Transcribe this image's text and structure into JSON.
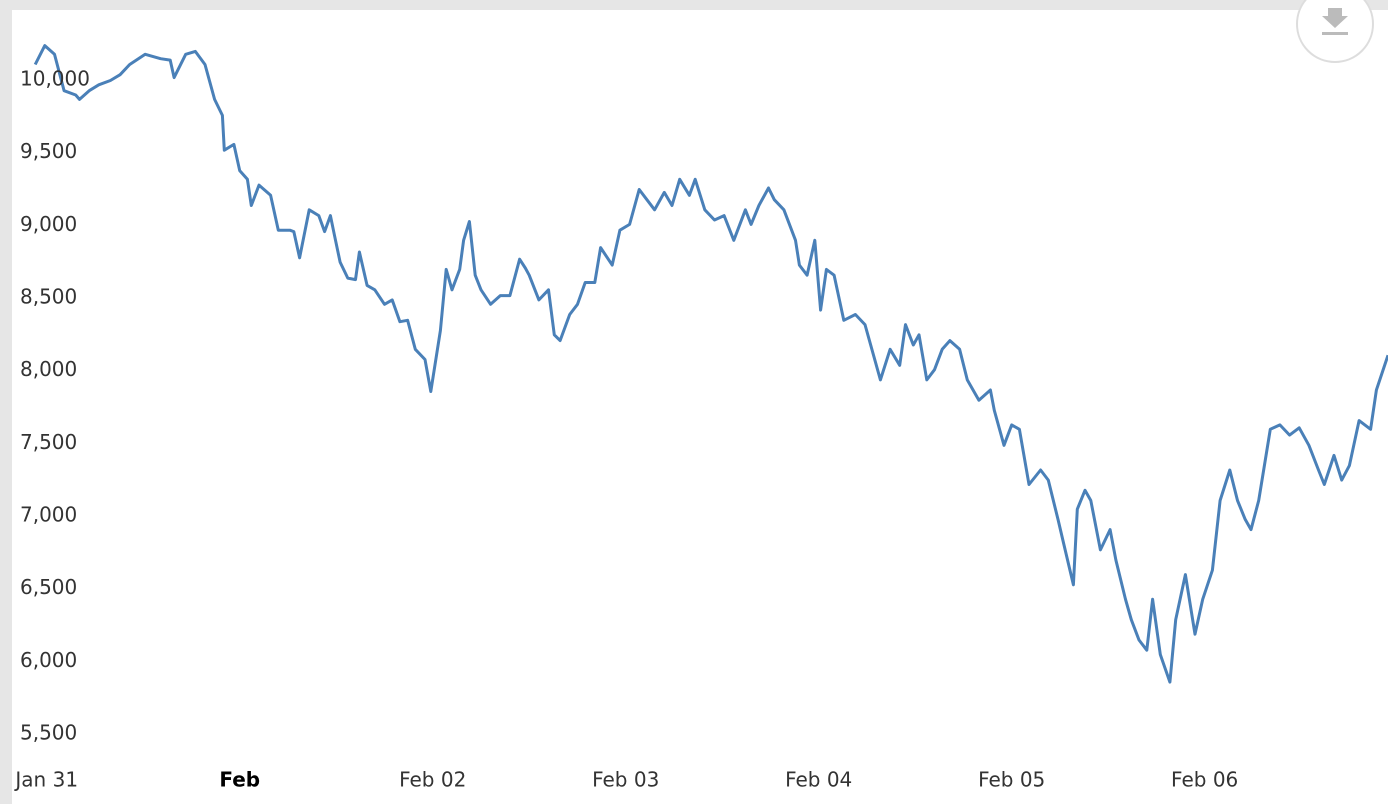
{
  "chart_data": {
    "type": "line",
    "x": [
      -0.06,
      -0.01,
      0.04,
      0.09,
      0.15,
      0.17,
      0.22,
      0.27,
      0.33,
      0.38,
      0.43,
      0.51,
      0.59,
      0.64,
      0.66,
      0.72,
      0.77,
      0.82,
      0.87,
      0.91,
      0.92,
      0.97,
      1.0,
      1.04,
      1.06,
      1.1,
      1.16,
      1.2,
      1.26,
      1.28,
      1.31,
      1.36,
      1.41,
      1.44,
      1.47,
      1.49,
      1.52,
      1.56,
      1.6,
      1.62,
      1.66,
      1.7,
      1.75,
      1.79,
      1.83,
      1.87,
      1.91,
      1.96,
      1.99,
      2.04,
      2.07,
      2.1,
      2.14,
      2.16,
      2.19,
      2.22,
      2.25,
      2.3,
      2.35,
      2.4,
      2.45,
      2.48,
      2.5,
      2.55,
      2.6,
      2.63,
      2.66,
      2.71,
      2.75,
      2.79,
      2.84,
      2.87,
      2.93,
      2.97,
      3.02,
      3.07,
      3.11,
      3.15,
      3.2,
      3.24,
      3.28,
      3.33,
      3.36,
      3.41,
      3.46,
      3.51,
      3.56,
      3.62,
      3.65,
      3.69,
      3.74,
      3.77,
      3.82,
      3.88,
      3.9,
      3.94,
      3.98,
      4.01,
      4.04,
      4.08,
      4.13,
      4.19,
      4.24,
      4.32,
      4.37,
      4.42,
      4.45,
      4.49,
      4.52,
      4.56,
      4.6,
      4.64,
      4.68,
      4.73,
      4.77,
      4.83,
      4.89,
      4.91,
      4.96,
      5.0,
      5.04,
      5.09,
      5.15,
      5.19,
      5.24,
      5.27,
      5.32,
      5.34,
      5.38,
      5.41,
      5.46,
      5.51,
      5.54,
      5.59,
      5.62,
      5.66,
      5.7,
      5.73,
      5.77,
      5.82,
      5.85,
      5.9,
      5.95,
      5.99,
      6.04,
      6.08,
      6.13,
      6.17,
      6.21,
      6.24,
      6.28,
      6.34,
      6.39,
      6.44,
      6.49,
      6.54,
      6.59,
      6.62,
      6.67,
      6.71,
      6.75,
      6.8,
      6.86,
      6.89,
      6.95
    ],
    "series": [
      {
        "color": "#4a80b8",
        "values": [
          10210,
          10340,
          10280,
          10030,
          10000,
          9970,
          10030,
          10070,
          10100,
          10140,
          10210,
          10280,
          10250,
          10240,
          10120,
          10280,
          10300,
          10210,
          9970,
          9860,
          9620,
          9660,
          9480,
          9420,
          9240,
          9380,
          9310,
          9070,
          9070,
          9060,
          8880,
          9210,
          9170,
          9060,
          9170,
          9040,
          8850,
          8740,
          8730,
          8920,
          8690,
          8660,
          8560,
          8590,
          8440,
          8450,
          8250,
          8180,
          7960,
          8380,
          8800,
          8660,
          8800,
          9000,
          9130,
          8760,
          8660,
          8560,
          8620,
          8620,
          8870,
          8810,
          8760,
          8590,
          8660,
          8350,
          8310,
          8490,
          8560,
          8710,
          8710,
          8950,
          8830,
          9070,
          9110,
          9350,
          9280,
          9210,
          9330,
          9240,
          9420,
          9310,
          9420,
          9210,
          9140,
          9170,
          9000,
          9210,
          9110,
          9240,
          9360,
          9280,
          9210,
          9000,
          8830,
          8760,
          9000,
          8520,
          8800,
          8760,
          8450,
          8490,
          8420,
          8040,
          8250,
          8140,
          8420,
          8280,
          8350,
          8040,
          8110,
          8250,
          8310,
          8250,
          8040,
          7900,
          7970,
          7830,
          7590,
          7730,
          7700,
          7320,
          7420,
          7350,
          7080,
          6910,
          6630,
          7150,
          7280,
          7210,
          6870,
          7010,
          6800,
          6530,
          6390,
          6250,
          6180,
          6530,
          6150,
          5960,
          6390,
          6700,
          6290,
          6530,
          6730,
          7210,
          7420,
          7210,
          7080,
          7010,
          7210,
          7700,
          7730,
          7660,
          7710,
          7590,
          7420,
          7320,
          7520,
          7350,
          7450,
          7760,
          7700,
          7970,
          8210
        ]
      }
    ],
    "xlim": [
      -0.18,
      6.95
    ],
    "xticks": [
      {
        "value": 0,
        "label": "Jan 31"
      },
      {
        "value": 1,
        "label": "Feb"
      },
      {
        "value": 2,
        "label": "Feb 02"
      },
      {
        "value": 3,
        "label": "Feb 03"
      },
      {
        "value": 4,
        "label": "Feb 04"
      },
      {
        "value": 5,
        "label": "Feb 05"
      },
      {
        "value": 6,
        "label": "Feb 06"
      }
    ],
    "xgrid": [
      0.5,
      1.5,
      2.5,
      3.5,
      4.5,
      5.5,
      6.5
    ],
    "ylim": [
      5500,
      10585
    ],
    "yticks": [
      {
        "value": 5500,
        "label": "5,500"
      },
      {
        "value": 6000,
        "label": "6,000"
      },
      {
        "value": 6500,
        "label": "6,500"
      },
      {
        "value": 7000,
        "label": "7,000"
      },
      {
        "value": 7500,
        "label": "7,500"
      },
      {
        "value": 8000,
        "label": "8,000"
      },
      {
        "value": 8500,
        "label": "8,500"
      },
      {
        "value": 9000,
        "label": "9,000"
      },
      {
        "value": 9500,
        "label": "9,500"
      },
      {
        "value": 10000,
        "label": "10,000"
      }
    ],
    "grid": true
  }
}
